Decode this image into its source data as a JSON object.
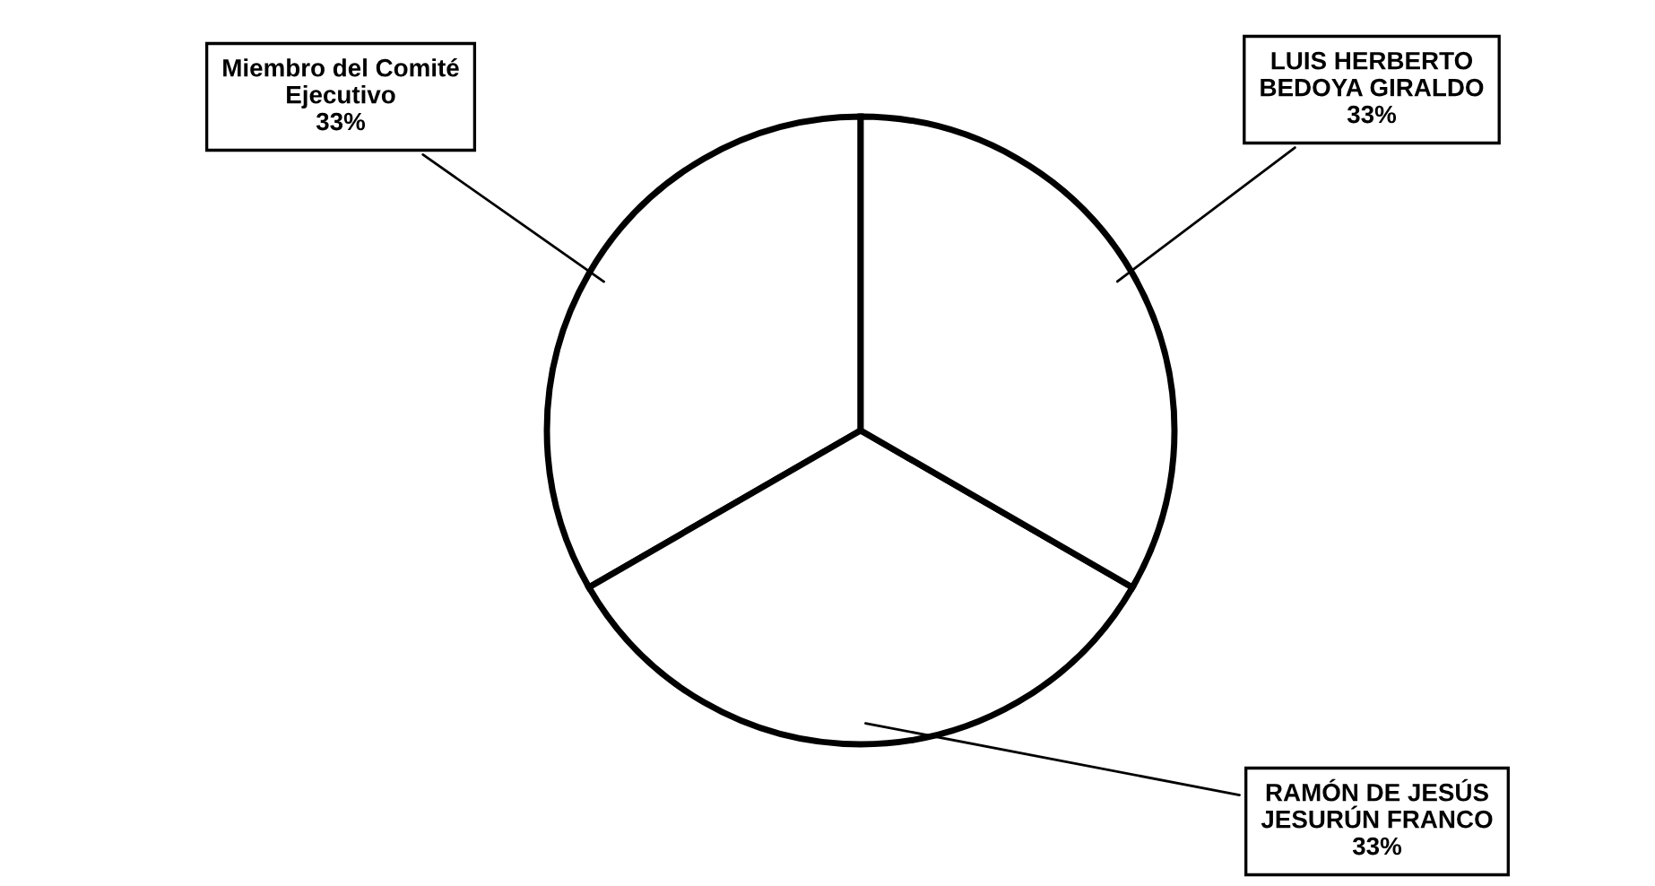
{
  "chart_data": {
    "type": "pie",
    "categories": [
      "Miembro del Comité\nEjecutivo",
      "RAMÓN DE JESÚS\nJESURÚN FRANCO",
      "LUIS HERBERTO\nBEDOYA GIRALDO"
    ],
    "values": [
      33,
      33,
      33
    ],
    "value_labels": [
      "33%",
      "33%",
      "33%"
    ],
    "colors": [
      "#ffffff",
      "#ffffff",
      "#ffffff"
    ],
    "legend": false
  }
}
